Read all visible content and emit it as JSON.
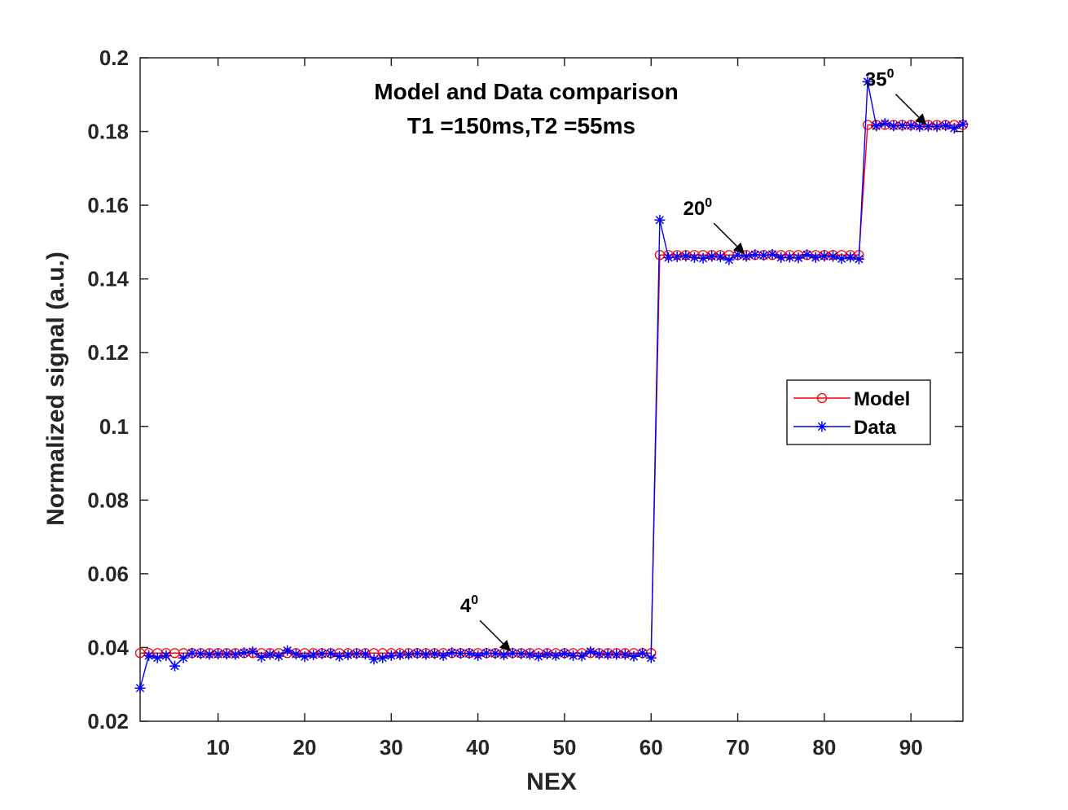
{
  "chart_data": {
    "type": "line",
    "title": [
      "Model and Data comparison",
      "T1 =150ms,T2  =55ms"
    ],
    "xlabel": "NEX",
    "ylabel": "Normalized signal (a.u.)",
    "xlim": [
      1,
      96
    ],
    "ylim": [
      0.02,
      0.2
    ],
    "x_ticks": [
      10,
      20,
      30,
      40,
      50,
      60,
      70,
      80,
      90
    ],
    "x_tick_labels": [
      "10",
      "20",
      "30",
      "40",
      "50",
      "60",
      "70",
      "80",
      "90"
    ],
    "y_ticks": [
      0.02,
      0.04,
      0.06,
      0.08,
      0.1,
      0.12,
      0.14,
      0.16,
      0.18,
      0.2
    ],
    "y_tick_labels": [
      "0.02",
      "0.04",
      "0.06",
      "0.08",
      "0.1",
      "0.12",
      "0.14",
      "0.16",
      "0.18",
      "0.2"
    ],
    "grid": false,
    "legend_position": "right-middle",
    "x": [
      1,
      2,
      3,
      4,
      5,
      6,
      7,
      8,
      9,
      10,
      11,
      12,
      13,
      14,
      15,
      16,
      17,
      18,
      19,
      20,
      21,
      22,
      23,
      24,
      25,
      26,
      27,
      28,
      29,
      30,
      31,
      32,
      33,
      34,
      35,
      36,
      37,
      38,
      39,
      40,
      41,
      42,
      43,
      44,
      45,
      46,
      47,
      48,
      49,
      50,
      51,
      52,
      53,
      54,
      55,
      56,
      57,
      58,
      59,
      60,
      61,
      62,
      63,
      64,
      65,
      66,
      67,
      68,
      69,
      70,
      71,
      72,
      73,
      74,
      75,
      76,
      77,
      78,
      79,
      80,
      81,
      82,
      83,
      84,
      85,
      86,
      87,
      88,
      89,
      90,
      91,
      92,
      93,
      94,
      95,
      96
    ],
    "series": [
      {
        "name": "Model",
        "color": "#ff0000",
        "marker": "circle",
        "values": [
          0.0385,
          0.0385,
          0.0385,
          0.0385,
          0.0385,
          0.0385,
          0.0385,
          0.0385,
          0.0385,
          0.0385,
          0.0385,
          0.0385,
          0.0385,
          0.0385,
          0.0385,
          0.0385,
          0.0385,
          0.0385,
          0.0385,
          0.0385,
          0.0385,
          0.0385,
          0.0385,
          0.0385,
          0.0385,
          0.0385,
          0.0385,
          0.0385,
          0.0385,
          0.0385,
          0.0385,
          0.0385,
          0.0385,
          0.0385,
          0.0385,
          0.0385,
          0.0385,
          0.0385,
          0.0385,
          0.0385,
          0.0385,
          0.0385,
          0.0385,
          0.0385,
          0.0385,
          0.0385,
          0.0385,
          0.0385,
          0.0385,
          0.0385,
          0.0385,
          0.0385,
          0.0385,
          0.0385,
          0.0385,
          0.0385,
          0.0385,
          0.0385,
          0.0385,
          0.0385,
          0.1465,
          0.1465,
          0.1465,
          0.1465,
          0.1465,
          0.1465,
          0.1465,
          0.1465,
          0.1465,
          0.1465,
          0.1465,
          0.1465,
          0.1465,
          0.1465,
          0.1465,
          0.1465,
          0.1465,
          0.1465,
          0.1465,
          0.1465,
          0.1465,
          0.1465,
          0.1465,
          0.1465,
          0.1818,
          0.1818,
          0.1818,
          0.1818,
          0.1818,
          0.1818,
          0.1818,
          0.1818,
          0.1818,
          0.1818,
          0.1818,
          0.1818
        ]
      },
      {
        "name": "Data",
        "color": "#0000ff",
        "marker": "asterisk",
        "values": [
          0.029,
          0.0378,
          0.0372,
          0.0378,
          0.035,
          0.0372,
          0.0385,
          0.0383,
          0.0381,
          0.0382,
          0.0382,
          0.0381,
          0.0386,
          0.0389,
          0.0374,
          0.0381,
          0.0377,
          0.0392,
          0.0382,
          0.0375,
          0.038,
          0.0383,
          0.0384,
          0.0376,
          0.038,
          0.0383,
          0.0382,
          0.0368,
          0.0372,
          0.0378,
          0.038,
          0.0381,
          0.0384,
          0.0381,
          0.0383,
          0.0378,
          0.0386,
          0.0384,
          0.0384,
          0.0378,
          0.0385,
          0.0384,
          0.038,
          0.0385,
          0.0383,
          0.0381,
          0.0376,
          0.0382,
          0.0378,
          0.0384,
          0.0378,
          0.0377,
          0.0389,
          0.0382,
          0.0381,
          0.0381,
          0.0381,
          0.0376,
          0.0385,
          0.0372,
          0.156,
          0.1458,
          0.146,
          0.1462,
          0.1458,
          0.1456,
          0.1461,
          0.146,
          0.1452,
          0.1465,
          0.1461,
          0.1466,
          0.1464,
          0.1467,
          0.1458,
          0.1459,
          0.1457,
          0.1466,
          0.1458,
          0.1462,
          0.1461,
          0.1455,
          0.1459,
          0.1454,
          0.1935,
          0.1815,
          0.1822,
          0.1815,
          0.1816,
          0.1816,
          0.1813,
          0.1814,
          0.1813,
          0.1816,
          0.1809,
          0.182
        ]
      }
    ],
    "annotations": [
      {
        "base": "4",
        "sup": "0",
        "x": 44,
        "y": 0.0385
      },
      {
        "base": "20",
        "sup": "0",
        "x": 71,
        "y": 0.1463
      },
      {
        "base": "35",
        "sup": "0",
        "x": 92,
        "y": 0.1813
      }
    ]
  }
}
